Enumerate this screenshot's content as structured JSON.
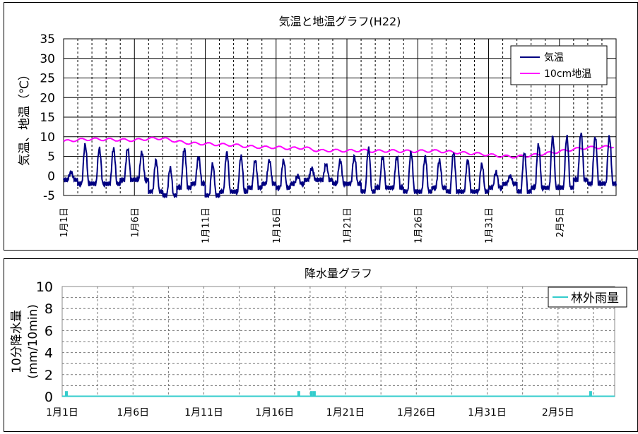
{
  "chart_data": [
    {
      "type": "line",
      "title": "気温と地温グラフ(H22)",
      "ylabel": "気温、地温（℃）",
      "ylim": [
        -5,
        35
      ],
      "yticks": [
        "35",
        "30",
        "25",
        "20",
        "15",
        "10",
        "5",
        "0",
        "-5"
      ],
      "xtick_labels": [
        "1月1日",
        "1月6日",
        "1月11日",
        "1月16日",
        "1月21日",
        "1月26日",
        "1月31日",
        "2月5日"
      ],
      "x_range_days": [
        0,
        39
      ],
      "grid": "vertical dashed daily, solid every 5 days",
      "legend_position": "top-right",
      "series": [
        {
          "name": "気温",
          "color": "#000080",
          "daily_min": [
            -1,
            -2,
            -2,
            -2,
            -1,
            -1,
            -4,
            -5,
            -3,
            -2,
            -5,
            -4,
            -4,
            -3,
            -2,
            -3,
            -2,
            -1,
            -1,
            -2,
            -2,
            -4,
            -3,
            -3,
            -4,
            -4,
            -3,
            -4,
            -4,
            -4,
            -3,
            -2,
            -4,
            -3,
            -3,
            -3,
            -1,
            -2,
            -2
          ],
          "daily_max": [
            1,
            8,
            7,
            7,
            7,
            6,
            4,
            2,
            7,
            5,
            3,
            6,
            5,
            4,
            4,
            4,
            0,
            2,
            3,
            4,
            5,
            7,
            5,
            5,
            6,
            5,
            4,
            6,
            4,
            3,
            1,
            0,
            6,
            8,
            10,
            10,
            11,
            10,
            10
          ]
        },
        {
          "name": "10cm地温",
          "color": "#ff00ff",
          "daily": [
            8.8,
            9.2,
            9.4,
            9.3,
            9.2,
            9.1,
            9.5,
            9.6,
            8.8,
            8.3,
            8.2,
            8.0,
            7.9,
            7.5,
            7.3,
            7.3,
            7.0,
            7.2,
            6.4,
            6.5,
            6.4,
            6.5,
            6.3,
            6.4,
            6.3,
            6.3,
            6.4,
            6.2,
            5.9,
            5.7,
            5.4,
            5.0,
            4.9,
            5.2,
            5.7,
            6.2,
            6.8,
            7.2,
            7.3,
            7.6
          ]
        }
      ]
    },
    {
      "type": "bar",
      "title": "降水量グラフ",
      "ylabel": "10分降水量\n(mm/10min)",
      "ylim": [
        0,
        10
      ],
      "yticks": [
        "10",
        "8",
        "6",
        "4",
        "2",
        "0"
      ],
      "xtick_labels": [
        "1月1日",
        "1月6日",
        "1月11日",
        "1月16日",
        "1月21日",
        "1月26日",
        "1月31日",
        "2月5日"
      ],
      "x_range_days": [
        0,
        39
      ],
      "grid": "dashed",
      "legend_position": "top-right",
      "series": [
        {
          "name": "林外雨量",
          "color": "#33cccc",
          "events": [
            {
              "day": 0.3,
              "value": 0.5
            },
            {
              "day": 16.7,
              "value": 0.5
            },
            {
              "day": 17.6,
              "value": 0.5
            },
            {
              "day": 17.8,
              "value": 0.5
            },
            {
              "day": 37.3,
              "value": 0.5
            }
          ]
        }
      ]
    }
  ]
}
